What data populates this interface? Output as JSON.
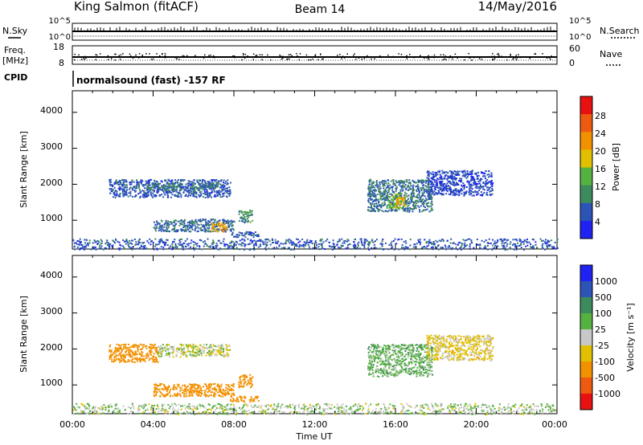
{
  "header": {
    "station": "King Salmon (fitACF)",
    "beam": "Beam 14",
    "date": "14/May/2016"
  },
  "status_panels": {
    "nsky_label": "N.Sky",
    "nsky_tick_top": "10^5",
    "nsky_tick_bottom": "10^0",
    "nsearch_label": "N.Search",
    "nsearch_tick_top": "10^5",
    "nsearch_tick_bottom": "10^0",
    "freq_label_1": "Freq.",
    "freq_label_2": "[MHz]",
    "freq_tick_top": "18",
    "freq_tick_bottom": "8",
    "nave_label": "Nave",
    "nave_tick_top": "60",
    "nave_tick_bottom": "0",
    "cpid_label": "CPID",
    "cpid_text": "normalsound (fast) -157 RF"
  },
  "axes": {
    "ylabel": "Slant Range [km]",
    "xlabel": "Time UT",
    "y_ticks": [
      "1000",
      "2000",
      "3000",
      "4000"
    ],
    "x_ticks": [
      "00:00",
      "04:00",
      "08:00",
      "12:00",
      "16:00",
      "20:00",
      "00:00"
    ]
  },
  "colorbars": {
    "power": {
      "label": "Power [dB]",
      "ticks": [
        "4",
        "8",
        "12",
        "16",
        "20",
        "24",
        "28"
      ],
      "colors": [
        "#1f22f0",
        "#2c54b6",
        "#3d8a5c",
        "#55b140",
        "#e0c000",
        "#f39000",
        "#ee5a10",
        "#e81010"
      ]
    },
    "velocity": {
      "label": "Velocity [m s⁻¹]",
      "ticks": [
        "1000",
        "500",
        "100",
        "25",
        "-25",
        "-100",
        "-500",
        "-1000"
      ],
      "colors": [
        "#1f22f0",
        "#2c54b6",
        "#3d8a5c",
        "#55b140",
        "#c8c8c8",
        "#e0c000",
        "#f39000",
        "#ee5a10",
        "#e81010"
      ]
    }
  },
  "chart_data": [
    {
      "type": "heatmap",
      "name": "power",
      "x_unit": "hours UT",
      "y_unit": "km",
      "xlim": [
        0,
        24
      ],
      "ylim": [
        200,
        4600
      ],
      "echo_regions": [
        {
          "t0": 1.8,
          "t1": 7.8,
          "r0": 1650,
          "r1": 2150,
          "value": 6
        },
        {
          "t0": 3.6,
          "t1": 5.4,
          "r0": 1850,
          "r1": 2050,
          "value": 9
        },
        {
          "t0": 5.8,
          "t1": 7.2,
          "r0": 1900,
          "r1": 2050,
          "value": 9
        },
        {
          "t0": 4.0,
          "t1": 8.0,
          "r0": 700,
          "r1": 1050,
          "value": 7
        },
        {
          "t0": 6.8,
          "t1": 7.6,
          "r0": 700,
          "r1": 950,
          "value": 21
        },
        {
          "t0": 7.8,
          "t1": 9.2,
          "r0": 550,
          "r1": 700,
          "value": 6
        },
        {
          "t0": 8.2,
          "t1": 8.9,
          "r0": 950,
          "r1": 1300,
          "value": 10
        },
        {
          "t0": 14.6,
          "t1": 17.8,
          "r0": 1250,
          "r1": 2150,
          "value": 8
        },
        {
          "t0": 15.6,
          "t1": 16.5,
          "r0": 1350,
          "r1": 1750,
          "value": 14
        },
        {
          "t0": 16.0,
          "t1": 16.4,
          "r0": 1450,
          "r1": 1650,
          "value": 20
        },
        {
          "t0": 17.5,
          "t1": 20.8,
          "r0": 1700,
          "r1": 2400,
          "value": 5
        },
        {
          "t0": 0.0,
          "t1": 24.0,
          "r0": 200,
          "r1": 500,
          "value": 6
        }
      ]
    },
    {
      "type": "heatmap",
      "name": "velocity",
      "x_unit": "hours UT",
      "y_unit": "km",
      "xlim": [
        0,
        24
      ],
      "ylim": [
        200,
        4600
      ],
      "echo_regions": [
        {
          "t0": 1.8,
          "t1": 4.2,
          "r0": 1650,
          "r1": 2150,
          "value": -180
        },
        {
          "t0": 4.2,
          "t1": 7.8,
          "r0": 1800,
          "r1": 2150,
          "value": 0
        },
        {
          "t0": 4.0,
          "t1": 8.0,
          "r0": 700,
          "r1": 1050,
          "value": -250
        },
        {
          "t0": 7.8,
          "t1": 9.2,
          "r0": 550,
          "r1": 700,
          "value": -200
        },
        {
          "t0": 8.2,
          "t1": 8.9,
          "r0": 950,
          "r1": 1300,
          "value": -400
        },
        {
          "t0": 14.6,
          "t1": 17.8,
          "r0": 1250,
          "r1": 2150,
          "value": 60
        },
        {
          "t0": 17.5,
          "t1": 20.8,
          "r0": 1700,
          "r1": 2400,
          "value": -50
        },
        {
          "t0": 0.0,
          "t1": 24.0,
          "r0": 200,
          "r1": 500,
          "value": 20
        }
      ]
    }
  ]
}
